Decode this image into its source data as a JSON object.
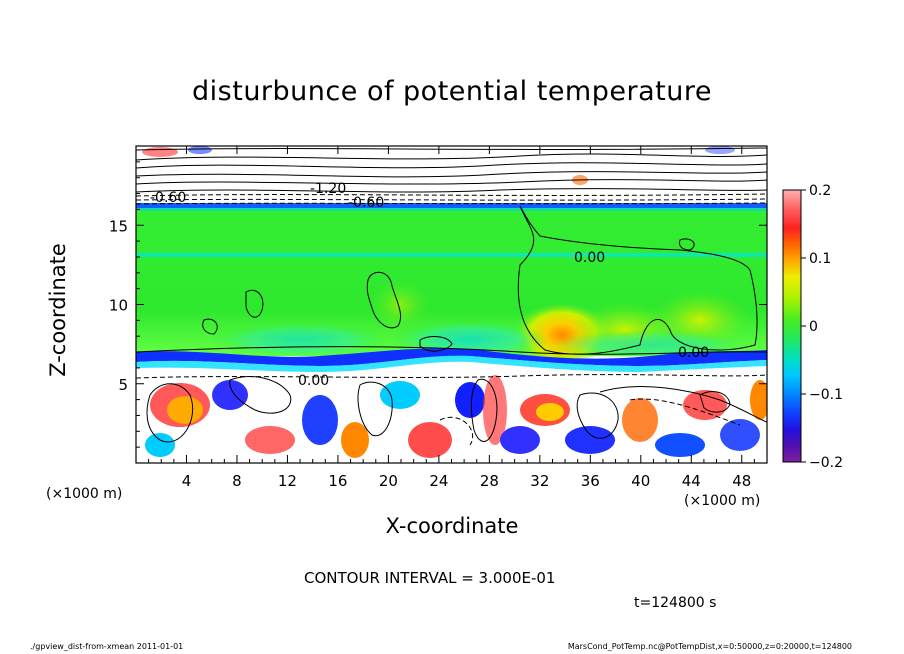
{
  "chart_data": {
    "type": "heatmap",
    "title": "disturbunce of potential temperature",
    "xlabel": "X-coordinate",
    "ylabel": "Z-coordinate",
    "x_unit": "(×1000 m)",
    "z_unit": "(×1000 m)",
    "xlim": [
      0,
      50
    ],
    "ylim": [
      0,
      20
    ],
    "x_ticks": [
      4,
      8,
      12,
      16,
      20,
      24,
      28,
      32,
      36,
      40,
      44,
      48
    ],
    "y_ticks": [
      5,
      10,
      15
    ],
    "colorbar": {
      "range": [
        -0.2,
        0.2
      ],
      "ticks": [
        0.2,
        0.1,
        0,
        -0.1,
        -0.2
      ],
      "tick_labels": [
        "0.2",
        "0.1",
        "0",
        "−0.1",
        "−0.2"
      ]
    },
    "contour_labels": [
      "-0.60",
      "-1.20",
      "-0.60",
      "0.00",
      "0.00",
      "0.00"
    ],
    "contour_interval": "CONTOUR INTERVAL = 3.000E-01",
    "time": "t=124800 s"
  },
  "footer": {
    "left": "./gpview_dist-from-xmean   2011-01-01",
    "right": "MarsCond_PotTemp.nc@PotTempDist,x=0:50000,z=0:20000,t=124800"
  },
  "colors": {
    "layer_green": "#33ee33",
    "band_cyan": "#00e5e5",
    "band_blue": "#1030ff",
    "warm_yellow": "#e8ee00",
    "warm_orange": "#ff8800",
    "warm_red": "#ff2020"
  }
}
